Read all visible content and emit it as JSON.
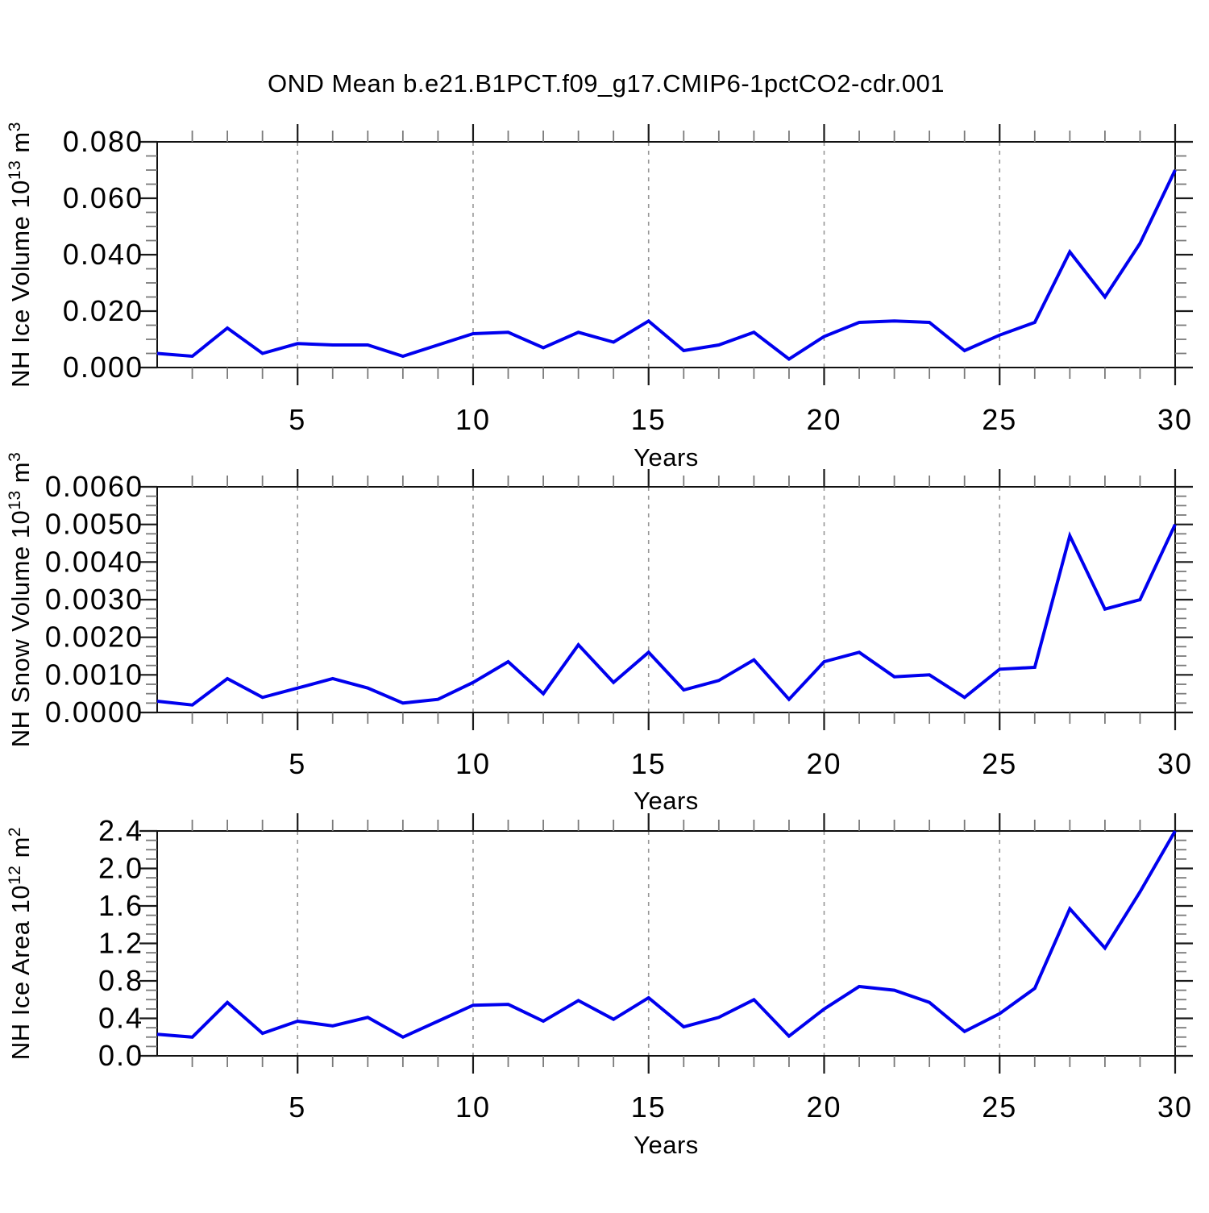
{
  "title": "OND Mean b.e21.B1PCT.f09_g17.CMIP6-1pctCO2-cdr.001",
  "shared": {
    "xlabel": "Years",
    "line_color": "#0000EE",
    "grid_color": "#979797",
    "tick_color": "#1a1a1a",
    "x_range": [
      1,
      30
    ],
    "x_major_ticks": [
      5,
      10,
      15,
      20,
      25,
      30
    ],
    "x_grid_years": [
      5,
      10,
      15,
      20,
      25
    ],
    "x_minor_step": 1,
    "grid_style": "dashed"
  },
  "chart_data": [
    {
      "type": "line",
      "panel": "nh-ice-volume",
      "xlabel": "Years",
      "ylabel_text": "NH Ice Volume 10^13 m^3",
      "ylabel_parts": [
        {
          "t": "NH Ice Volume 10"
        },
        {
          "t": "13",
          "sup": true
        },
        {
          "t": " m"
        },
        {
          "t": "3",
          "sup": true
        }
      ],
      "ylim": [
        0,
        0.08
      ],
      "ytick_values": [
        0.0,
        0.02,
        0.04,
        0.06,
        0.08
      ],
      "ytick_labels": [
        "0.000",
        "0.020",
        "0.040",
        "0.060",
        "0.080"
      ],
      "y_minor_step": 0.005,
      "x": [
        1,
        2,
        3,
        4,
        5,
        6,
        7,
        8,
        9,
        10,
        11,
        12,
        13,
        14,
        15,
        16,
        17,
        18,
        19,
        20,
        21,
        22,
        23,
        24,
        25,
        26,
        27,
        28,
        29,
        30
      ],
      "values": [
        0.005,
        0.004,
        0.014,
        0.005,
        0.0085,
        0.008,
        0.008,
        0.004,
        0.008,
        0.012,
        0.0125,
        0.007,
        0.0125,
        0.009,
        0.0165,
        0.006,
        0.008,
        0.0125,
        0.003,
        0.011,
        0.016,
        0.0165,
        0.016,
        0.006,
        0.0115,
        0.016,
        0.041,
        0.025,
        0.044,
        0.07
      ]
    },
    {
      "type": "line",
      "panel": "nh-snow-volume",
      "xlabel": "Years",
      "ylabel_text": "NH Snow Volume 10^13 m^3",
      "ylabel_parts": [
        {
          "t": "NH Snow Volume 10"
        },
        {
          "t": "13",
          "sup": true
        },
        {
          "t": " m"
        },
        {
          "t": "3",
          "sup": true
        }
      ],
      "ylim": [
        0,
        0.006
      ],
      "ytick_values": [
        0.0,
        0.001,
        0.002,
        0.003,
        0.004,
        0.005,
        0.006
      ],
      "ytick_labels": [
        "0.0000",
        "0.0010",
        "0.0020",
        "0.0030",
        "0.0040",
        "0.0050",
        "0.0060"
      ],
      "y_minor_step": 0.00025,
      "x": [
        1,
        2,
        3,
        4,
        5,
        6,
        7,
        8,
        9,
        10,
        11,
        12,
        13,
        14,
        15,
        16,
        17,
        18,
        19,
        20,
        21,
        22,
        23,
        24,
        25,
        26,
        27,
        28,
        29,
        30
      ],
      "values": [
        0.0003,
        0.0002,
        0.0009,
        0.0004,
        0.00065,
        0.0009,
        0.00065,
        0.00025,
        0.00035,
        0.0008,
        0.00135,
        0.0005,
        0.0018,
        0.0008,
        0.0016,
        0.0006,
        0.00085,
        0.0014,
        0.00035,
        0.00135,
        0.0016,
        0.00095,
        0.001,
        0.0004,
        0.00115,
        0.0012,
        0.0047,
        0.00275,
        0.003,
        0.005
      ]
    },
    {
      "type": "line",
      "panel": "nh-ice-area",
      "xlabel": "Years",
      "ylabel_text": "NH Ice Area 10^12 m^2",
      "ylabel_parts": [
        {
          "t": "NH Ice Area 10"
        },
        {
          "t": "12",
          "sup": true
        },
        {
          "t": " m"
        },
        {
          "t": "2",
          "sup": true
        }
      ],
      "ylim": [
        0,
        2.4
      ],
      "ytick_values": [
        0.0,
        0.4,
        0.8,
        1.2,
        1.6,
        2.0,
        2.4
      ],
      "ytick_labels": [
        "0.0",
        "0.4",
        "0.8",
        "1.2",
        "1.6",
        "2.0",
        "2.4"
      ],
      "y_minor_step": 0.1,
      "x": [
        1,
        2,
        3,
        4,
        5,
        6,
        7,
        8,
        9,
        10,
        11,
        12,
        13,
        14,
        15,
        16,
        17,
        18,
        19,
        20,
        21,
        22,
        23,
        24,
        25,
        26,
        27,
        28,
        29,
        30
      ],
      "values": [
        0.23,
        0.2,
        0.57,
        0.24,
        0.37,
        0.32,
        0.41,
        0.2,
        0.37,
        0.54,
        0.55,
        0.37,
        0.59,
        0.39,
        0.62,
        0.31,
        0.41,
        0.6,
        0.21,
        0.5,
        0.74,
        0.7,
        0.57,
        0.26,
        0.45,
        0.72,
        1.57,
        1.15,
        1.75,
        2.4
      ]
    }
  ]
}
